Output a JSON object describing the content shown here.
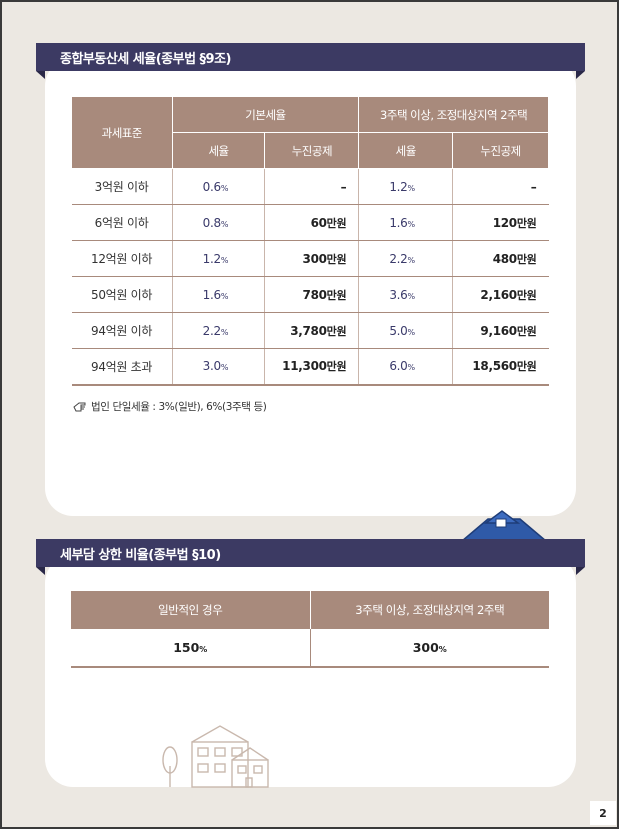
{
  "section1": {
    "title": "종합부동산세 세율(종부법 §9조)",
    "table": {
      "header_standard": "과세표준",
      "header_basic": "기본세율",
      "header_multi": "3주택 이상, 조정대상지역 2주택",
      "sub_rate": "세율",
      "sub_deduction": "누진공제",
      "rows": [
        {
          "standard": "3억원 이하",
          "basic_rate": "0.6",
          "basic_deduction": "–",
          "multi_rate": "1.2",
          "multi_deduction": "–"
        },
        {
          "standard": "6억원 이하",
          "basic_rate": "0.8",
          "basic_deduction": "60",
          "multi_rate": "1.6",
          "multi_deduction": "120"
        },
        {
          "standard": "12억원 이하",
          "basic_rate": "1.2",
          "basic_deduction": "300",
          "multi_rate": "2.2",
          "multi_deduction": "480"
        },
        {
          "standard": "50억원 이하",
          "basic_rate": "1.6",
          "basic_deduction": "780",
          "multi_rate": "3.6",
          "multi_deduction": "2,160"
        },
        {
          "standard": "94억원 이하",
          "basic_rate": "2.2",
          "basic_deduction": "3,780",
          "multi_rate": "5.0",
          "multi_deduction": "9,160"
        },
        {
          "standard": "94억원 초과",
          "basic_rate": "3.0",
          "basic_deduction": "11,300",
          "multi_rate": "6.0",
          "multi_deduction": "18,560"
        }
      ],
      "percent_unit": "%",
      "manwon_unit": "만원"
    },
    "note": "법인 단일세율 : 3%(일반), 6%(3주택 등)"
  },
  "section2": {
    "title": "세부담 상한 비율(종부법 §10)",
    "table": {
      "header_general": "일반적인 경우",
      "header_multi": "3주택 이상, 조정대상지역 2주택",
      "value_general": "150",
      "value_multi": "300",
      "percent_unit": "%"
    }
  },
  "page_number": "2",
  "colors": {
    "banner": "#3c3a63",
    "table_header": "#a88a7c",
    "background": "#ece8e2",
    "house_roof": "#2f5aa8"
  }
}
